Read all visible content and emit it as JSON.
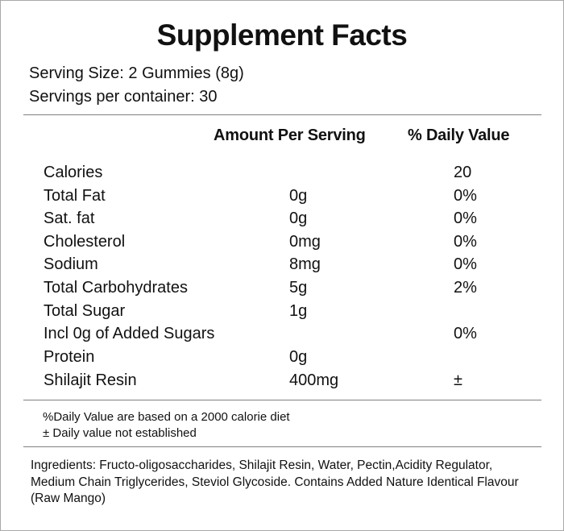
{
  "title": "Supplement Facts",
  "serving_size": "Serving Size: 2 Gummies (8g)",
  "servings_per_container": "Servings per container: 30",
  "column_headers": {
    "amount": "Amount Per Serving",
    "daily_value": "% Daily Value"
  },
  "rows": [
    {
      "name": "Calories",
      "amount": "",
      "dv": "20"
    },
    {
      "name": "Total Fat",
      "amount": "0g",
      "dv": "0%"
    },
    {
      "name": "Sat. fat",
      "amount": "0g",
      "dv": "0%"
    },
    {
      "name": "Cholesterol",
      "amount": "0mg",
      "dv": "0%"
    },
    {
      "name": "Sodium",
      "amount": "8mg",
      "dv": "0%"
    },
    {
      "name": "Total Carbohydrates",
      "amount": "5g",
      "dv": "2%"
    },
    {
      "name": "Total Sugar",
      "amount": "1g",
      "dv": ""
    },
    {
      "name": "Incl 0g of Added Sugars",
      "amount": "",
      "dv": "0%"
    },
    {
      "name": "Protein",
      "amount": "0g",
      "dv": ""
    },
    {
      "name": "Shilajit Resin",
      "amount": "400mg",
      "dv": "±"
    }
  ],
  "notes": [
    "%Daily Value are based on a 2000 calorie diet",
    "± Daily value not established"
  ],
  "ingredients": "Ingredients: Fructo-oligosaccharides, Shilajit Resin, Water, Pectin,Acidity Regulator, Medium Chain Triglycerides, Steviol Glycoside. Contains Added Nature Identical Flavour (Raw Mango)"
}
